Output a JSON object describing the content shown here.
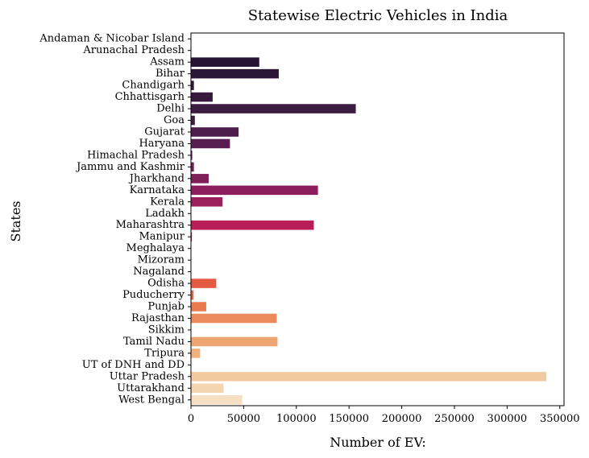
{
  "chart_data": {
    "type": "bar",
    "orientation": "horizontal",
    "title": "Statewise Electric Vehicles in India",
    "xlabel": "Number of EV:",
    "ylabel": "States",
    "xlim": [
      0,
      354000
    ],
    "xticks": [
      0,
      50000,
      100000,
      150000,
      200000,
      250000,
      300000,
      350000
    ],
    "grid": false,
    "categories": [
      "Andaman & Nicobar Island",
      "Arunachal Pradesh",
      "Assam",
      "Bihar",
      "Chandigarh",
      "Chhattisgarh",
      "Delhi",
      "Goa",
      "Gujarat",
      "Haryana",
      "Himachal Pradesh",
      "Jammu and Kashmir",
      "Jharkhand",
      "Karnataka",
      "Kerala",
      "Ladakh",
      "Maharashtra",
      "Manipur",
      "Meghalaya",
      "Mizoram",
      "Nagaland",
      "Odisha",
      "Puducherry",
      "Punjab",
      "Rajasthan",
      "Sikkim",
      "Tamil Nadu",
      "Tripura",
      "UT of DNH and DD",
      "Uttar Pradesh",
      "Uttarakhand",
      "West Bengal"
    ],
    "values": [
      160,
      20,
      64800,
      83300,
      2800,
      20600,
      156400,
      3700,
      45200,
      37000,
      1200,
      2800,
      16800,
      120500,
      30000,
      50,
      116600,
      900,
      100,
      100,
      20,
      24000,
      2500,
      14500,
      81400,
      20,
      82100,
      8700,
      200,
      337200,
      31000,
      48700
    ],
    "colors": [
      "#1d1129",
      "#211230",
      "#251433",
      "#2a1637",
      "#30183a",
      "#36193d",
      "#3b1b40",
      "#401c43",
      "#4d1d4b",
      "#591e51",
      "#641e54",
      "#6f1f57",
      "#7f1f5a",
      "#8d1e5d",
      "#9b1e5d",
      "#a91e5d",
      "#b81e58",
      "#c41f54",
      "#cf254e",
      "#d83347",
      "#df4641",
      "#e45a43",
      "#e66a49",
      "#e97a50",
      "#ea8a5d",
      "#eb9766",
      "#eda572",
      "#eeb27f",
      "#f0bf8f",
      "#f2caa1",
      "#f4d5b2",
      "#f6e0c4"
    ]
  }
}
